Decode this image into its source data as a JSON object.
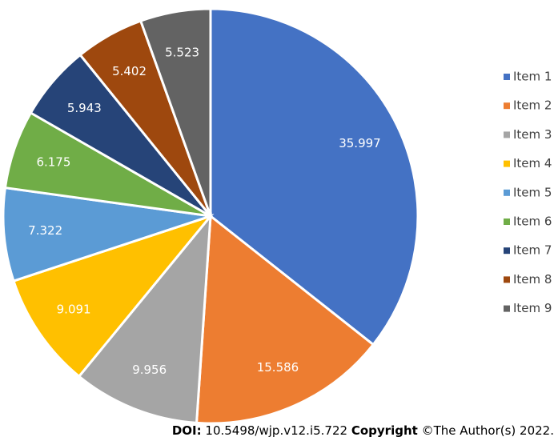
{
  "chart_data": {
    "type": "pie",
    "categories": [
      "Item 1",
      "Item 2",
      "Item 3",
      "Item 4",
      "Item 5",
      "Item 6",
      "Item 7",
      "Item 8",
      "Item 9"
    ],
    "values": [
      35.997,
      15.586,
      9.956,
      9.091,
      7.322,
      6.175,
      5.943,
      5.402,
      5.523
    ],
    "colors": [
      "#4472c4",
      "#ed7d31",
      "#a5a5a5",
      "#ffc000",
      "#5b9bd5",
      "#70ad47",
      "#264478",
      "#9e480e",
      "#636363"
    ],
    "legend": "right"
  },
  "footer": {
    "doi_label": "DOI:",
    "doi": "10.5498/wjp.v12.i5.722",
    "copyright_label": "Copyright",
    "copyright": "©The Author(s) 2022."
  }
}
